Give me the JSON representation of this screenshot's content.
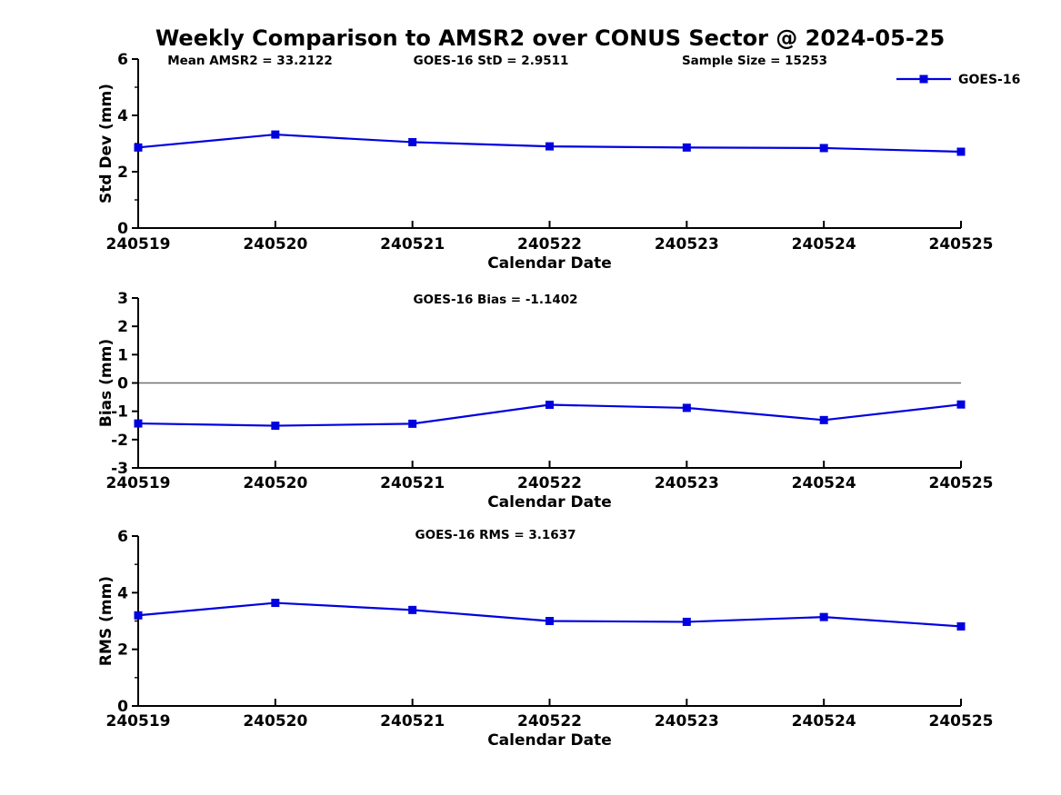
{
  "page_title": "Weekly Comparison to AMSR2 over CONUS Sector @ 2024-05-25",
  "colors": {
    "series_line": "#0000e0",
    "zero_line": "#707070",
    "axis": "#000000",
    "text": "#000000",
    "background": "#ffffff"
  },
  "legend": {
    "label": "GOES-16",
    "position": "top-right",
    "marker": "filled-square"
  },
  "chart_data": [
    {
      "type": "line",
      "name": "std_dev",
      "title": "",
      "annotations": [
        "Mean AMSR2 = 33.2122",
        "GOES-16 StD = 2.9511",
        "Sample Size = 15253"
      ],
      "categories": [
        "240519",
        "240520",
        "240521",
        "240522",
        "240523",
        "240524",
        "240525"
      ],
      "series": [
        {
          "name": "GOES-16",
          "values": [
            2.86,
            3.32,
            3.05,
            2.9,
            2.86,
            2.84,
            2.71
          ]
        }
      ],
      "xlabel": "Calendar Date",
      "ylabel": "Std Dev (mm)",
      "ylim": [
        0,
        6
      ],
      "yticks": [
        0,
        2,
        4,
        6
      ],
      "yticks_minor": [
        1,
        3,
        5
      ],
      "grid": false,
      "legend_visible": true,
      "zero_line": false
    },
    {
      "type": "line",
      "name": "bias",
      "title": "",
      "annotations": [
        "GOES-16 Bias  = -1.1402"
      ],
      "categories": [
        "240519",
        "240520",
        "240521",
        "240522",
        "240523",
        "240524",
        "240525"
      ],
      "series": [
        {
          "name": "GOES-16",
          "values": [
            -1.43,
            -1.51,
            -1.44,
            -0.77,
            -0.88,
            -1.31,
            -0.76
          ]
        }
      ],
      "xlabel": "Calendar Date",
      "ylabel": "Bias (mm)",
      "ylim": [
        -3,
        3
      ],
      "yticks": [
        -3,
        -2,
        -1,
        0,
        1,
        2,
        3
      ],
      "yticks_minor": [],
      "grid": false,
      "legend_visible": false,
      "zero_line": true
    },
    {
      "type": "line",
      "name": "rms",
      "title": "",
      "annotations": [
        "GOES-16 RMS = 3.1637"
      ],
      "categories": [
        "240519",
        "240520",
        "240521",
        "240522",
        "240523",
        "240524",
        "240525"
      ],
      "series": [
        {
          "name": "GOES-16",
          "values": [
            3.2,
            3.64,
            3.39,
            3.0,
            2.97,
            3.14,
            2.81
          ]
        }
      ],
      "xlabel": "Calendar Date",
      "ylabel": "RMS (mm)",
      "ylim": [
        0,
        6
      ],
      "yticks": [
        0,
        2,
        4,
        6
      ],
      "yticks_minor": [
        1,
        3,
        5
      ],
      "grid": false,
      "legend_visible": false,
      "zero_line": false
    }
  ]
}
